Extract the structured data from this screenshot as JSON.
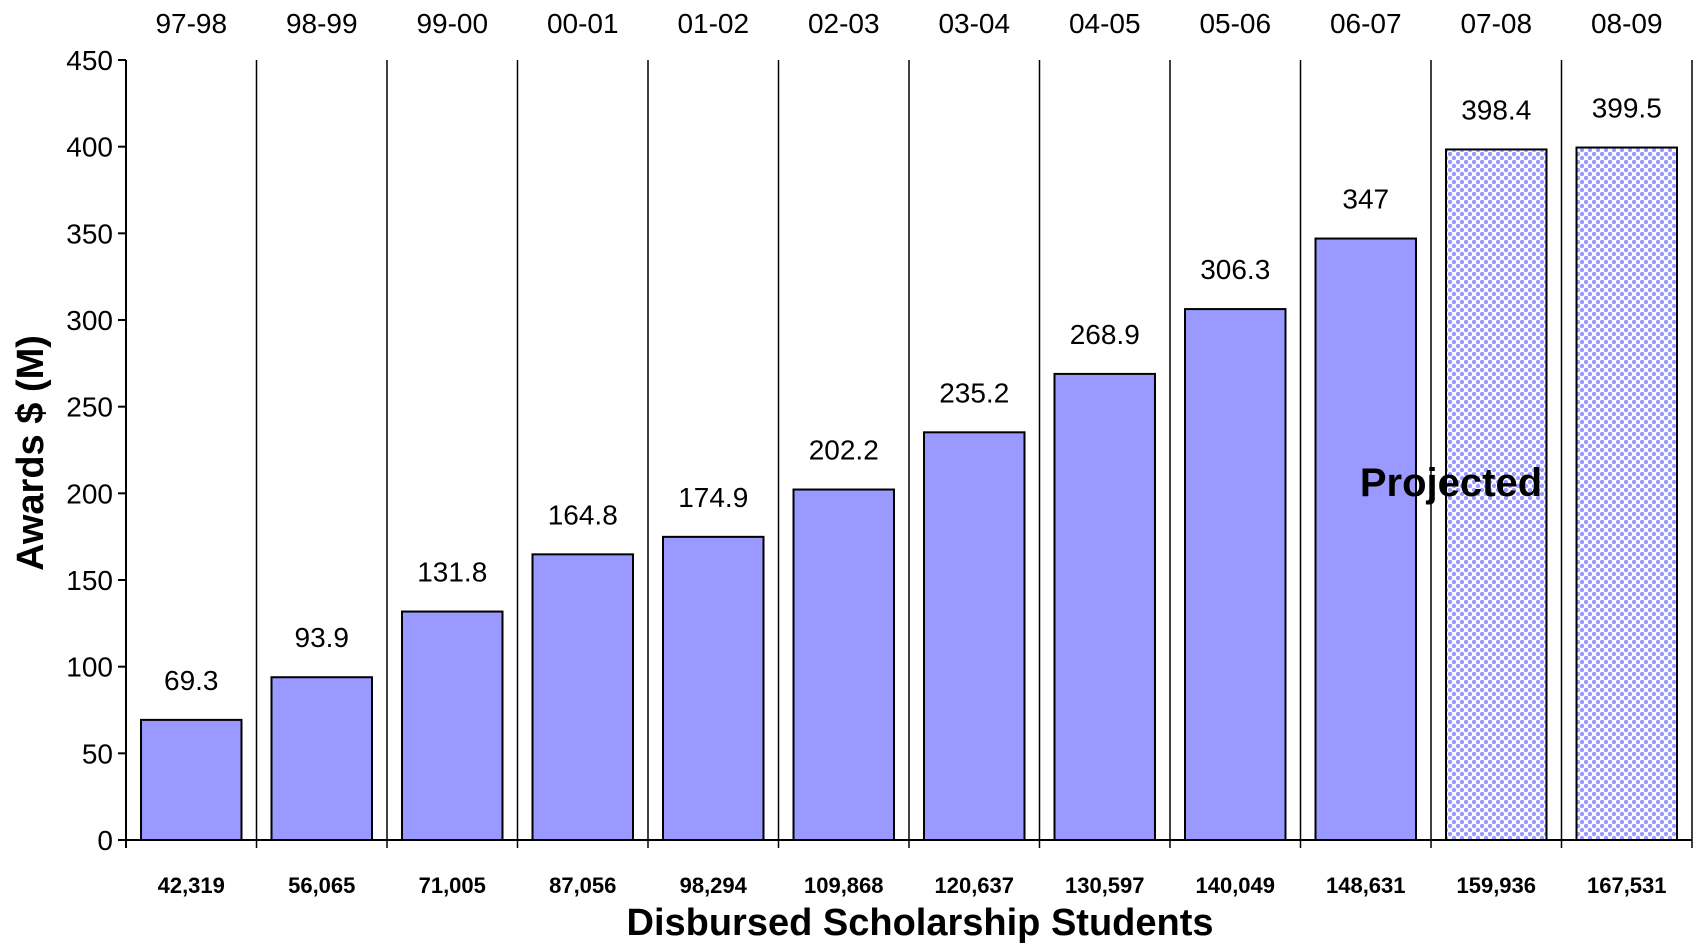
{
  "chart_data": {
    "type": "bar",
    "categories": [
      "97-98",
      "98-99",
      "99-00",
      "00-01",
      "01-02",
      "02-03",
      "03-04",
      "04-05",
      "05-06",
      "06-07",
      "07-08",
      "08-09"
    ],
    "values": [
      69.3,
      93.9,
      131.8,
      164.8,
      174.9,
      202.2,
      235.2,
      268.9,
      306.3,
      347,
      398.4,
      399.5
    ],
    "value_labels": [
      "69.3",
      "93.9",
      "131.8",
      "164.8",
      "174.9",
      "202.2",
      "235.2",
      "268.9",
      "306.3",
      "347",
      "398.4",
      "399.5"
    ],
    "projected": [
      false,
      false,
      false,
      false,
      false,
      false,
      false,
      false,
      false,
      false,
      true,
      true
    ],
    "student_counts": [
      "42,319",
      "56,065",
      "71,005",
      "87,056",
      "98,294",
      "109,868",
      "120,637",
      "130,597",
      "140,049",
      "148,631",
      "159,936",
      "167,531"
    ],
    "xlabel": "Disbursed Scholarship Students",
    "ylabel": "Awards $ (M)",
    "ylim": [
      0,
      450
    ],
    "yticks": [
      0,
      50,
      100,
      150,
      200,
      250,
      300,
      350,
      400,
      450
    ],
    "annotation": "Projected",
    "grid": false,
    "category_axis_position": "top",
    "colors": {
      "bar_fill": "#9999FF",
      "bar_stroke": "#000000",
      "projected_pattern": "#9999FF",
      "projected_background": "#FFFFFF"
    }
  }
}
